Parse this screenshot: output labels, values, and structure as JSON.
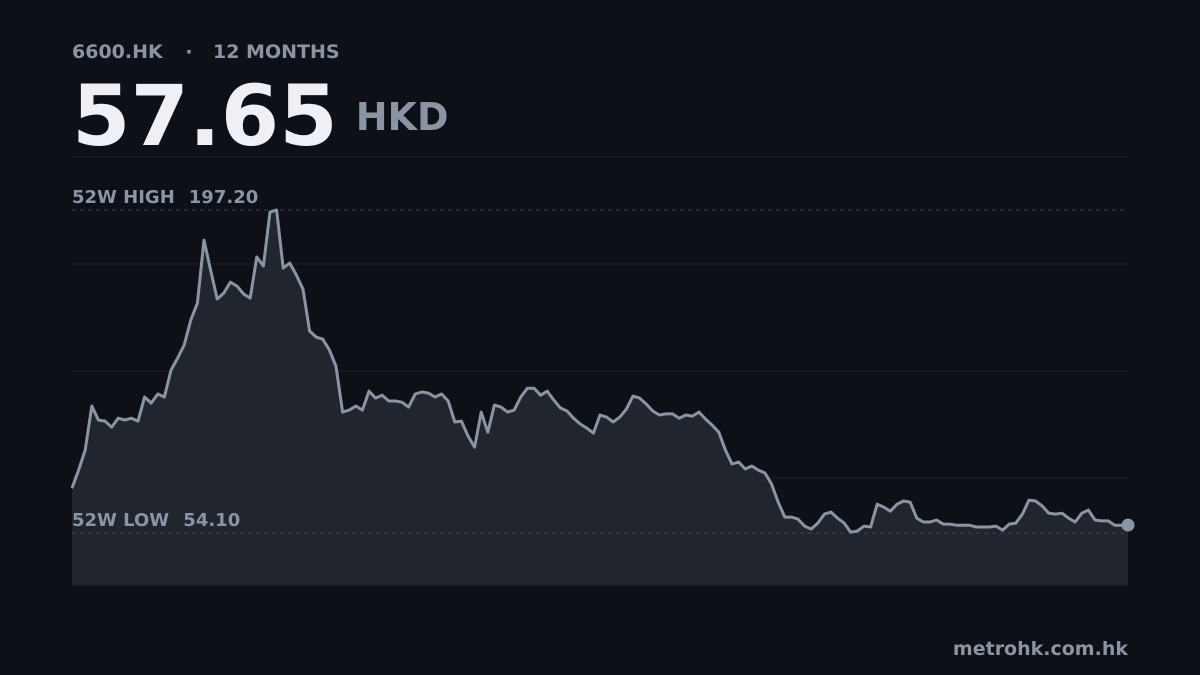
{
  "chart_data": {
    "type": "line",
    "ticker": "6600.HK",
    "separator": "·",
    "period": "12 MONTHS",
    "price": 57.65,
    "currency": "HKD",
    "source": "metrohk.com.hk",
    "color": "#8b94a3",
    "fill": "#21252d",
    "ylim": [
      31.1,
      220.7
    ],
    "reference_lines": [
      {
        "name": "52W HIGH",
        "value": 197.2,
        "label": "197.20"
      },
      {
        "name": "52W LOW",
        "value": 54.1,
        "label": "54.10"
      }
    ],
    "values": [
      74.0,
      82,
      90.9,
      110.4,
      104.2,
      103.7,
      101,
      105,
      104.2,
      105,
      103.7,
      114.4,
      111.7,
      115.7,
      114.4,
      126.3,
      131.6,
      137.4,
      148.5,
      156,
      183.9,
      170.6,
      157.8,
      160.4,
      165.3,
      163.5,
      160,
      158.2,
      176.4,
      172.4,
      196.3,
      197.2,
      171.5,
      173.7,
      168.4,
      162.2,
      143.6,
      140.9,
      140,
      135.2,
      128,
      107.7,
      108.6,
      110.4,
      108.6,
      117,
      113.9,
      115.2,
      112.6,
      112.6,
      112.1,
      109.9,
      115.7,
      116.6,
      116.1,
      114.4,
      115.7,
      112.6,
      103.3,
      103.7,
      97.1,
      92.2,
      107.7,
      98.8,
      110.8,
      109.9,
      107.7,
      108.6,
      114.4,
      118.3,
      118.3,
      115.2,
      117,
      113,
      109.5,
      108.2,
      105,
      102.4,
      100.6,
      98.4,
      106.4,
      105.5,
      103.3,
      105.5,
      109,
      114.8,
      113.9,
      111.3,
      108.2,
      106.4,
      106.9,
      106.9,
      105,
      106.4,
      105.9,
      107.7,
      104.6,
      101.9,
      98.8,
      90.9,
      84.7,
      85.6,
      82.5,
      83.8,
      82,
      80.7,
      75.8,
      67.8,
      61.2,
      61.2,
      60.3,
      57.2,
      55.9,
      58.5,
      62.5,
      63.4,
      60.7,
      58.5,
      54.5,
      55,
      57.2,
      56.8,
      66.9,
      65.6,
      63.8,
      66.9,
      68.3,
      67.8,
      60.7,
      59,
      59,
      59.9,
      58.1,
      58.1,
      57.6,
      57.6,
      57.6,
      56.8,
      56.8,
      56.8,
      57.2,
      55.4,
      58.1,
      58.5,
      62.5,
      68.7,
      68.3,
      66.1,
      62.9,
      62.5,
      62.9,
      60.7,
      59,
      62.9,
      64.3,
      59.9,
      59.5,
      59.5,
      57.6,
      57.6,
      57.65
    ]
  }
}
